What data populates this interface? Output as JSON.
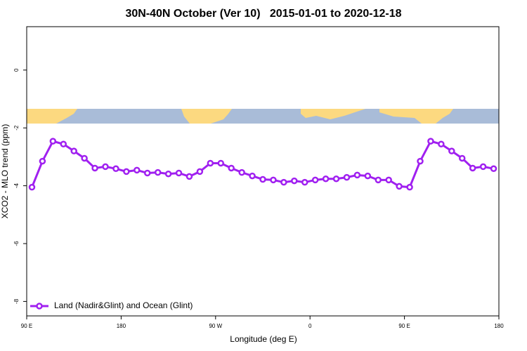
{
  "chart_data": {
    "type": "line",
    "title": "30N-40N October (Ver 10)   2015-01-01 to 2020-12-18",
    "x_label": "Longitude (deg E)",
    "y_label": "XCO2 - MLO trend (ppm)",
    "xlim": [
      90,
      540
    ],
    "ylim": [
      -8.5,
      1.5
    ],
    "xticks": [
      {
        "value": 90,
        "label": "90 E"
      },
      {
        "value": 180,
        "label": "180"
      },
      {
        "value": 270,
        "label": "90 W"
      },
      {
        "value": 360,
        "label": "0"
      },
      {
        "value": 450,
        "label": "90 E"
      },
      {
        "value": 540,
        "label": "180"
      }
    ],
    "yticks": [
      0,
      -2,
      -4,
      -6,
      -8
    ],
    "legend_position": "bottom-left",
    "series": [
      {
        "name": "Land (Nadir&Glint) and Ocean (Glint)",
        "color": "#a020f0",
        "x": [
          95,
          105,
          115,
          125,
          135,
          145,
          155,
          165,
          175,
          185,
          195,
          205,
          215,
          225,
          235,
          245,
          255,
          265,
          275,
          285,
          295,
          305,
          315,
          325,
          335,
          345,
          355,
          365,
          375,
          385,
          395,
          405,
          415,
          425,
          435,
          445,
          455,
          465,
          475,
          485,
          495,
          505,
          515,
          525,
          535
        ],
        "values": [
          -4.05,
          -3.15,
          -2.46,
          -2.56,
          -2.8,
          -3.05,
          -3.39,
          -3.34,
          -3.41,
          -3.51,
          -3.46,
          -3.56,
          -3.54,
          -3.59,
          -3.56,
          -3.68,
          -3.51,
          -3.22,
          -3.22,
          -3.39,
          -3.54,
          -3.66,
          -3.78,
          -3.8,
          -3.88,
          -3.83,
          -3.88,
          -3.8,
          -3.76,
          -3.76,
          -3.71,
          -3.63,
          -3.66,
          -3.8,
          -3.8,
          -4.02,
          -4.05,
          -3.15,
          -2.46,
          -2.56,
          -2.8,
          -3.05,
          -3.39,
          -3.34,
          -3.41
        ]
      }
    ]
  }
}
